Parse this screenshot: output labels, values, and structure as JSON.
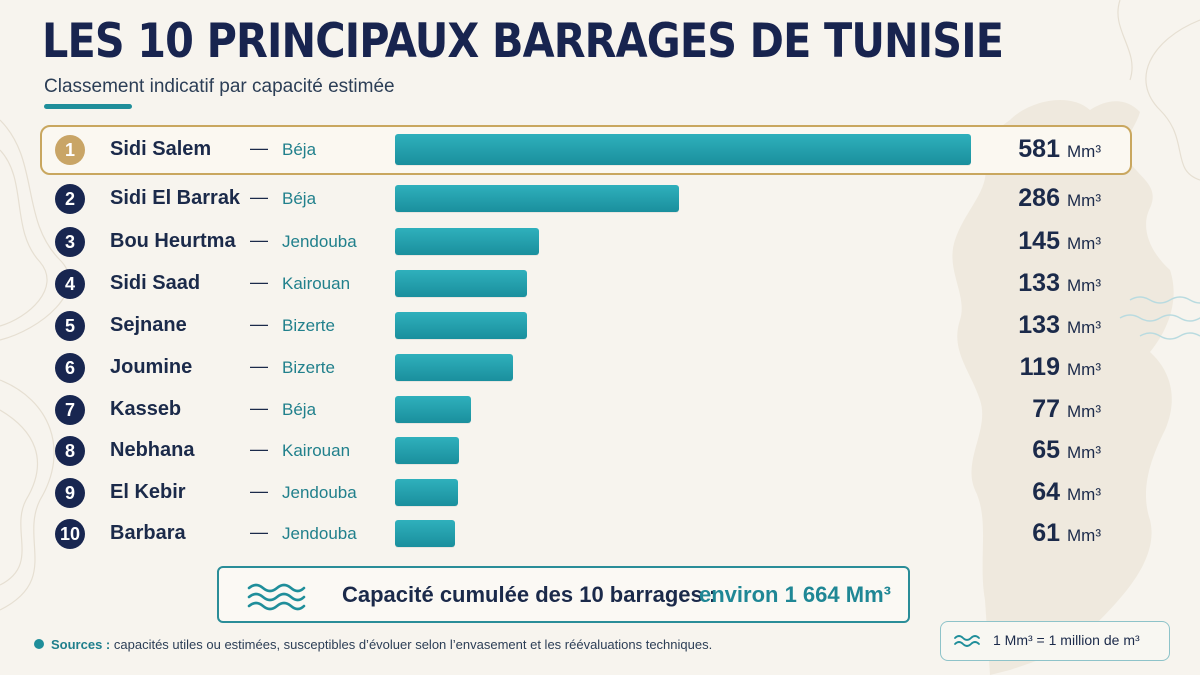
{
  "title": "LES 10 PRINCIPAUX BARRAGES DE TUNISIE",
  "subtitle": "Classement indicatif par capacité estimée",
  "colors": {
    "navy": "#182650",
    "teal_bar": "#1f98a6",
    "teal_text": "#21808c",
    "gold": "#c9a566",
    "background": "#f7f4ee"
  },
  "chart_data": {
    "type": "bar",
    "orientation": "horizontal",
    "title": "LES 10 PRINCIPAUX BARRAGES DE TUNISIE",
    "subtitle": "Classement indicatif par capacité estimée",
    "unit": "Mm³",
    "xlim": [
      0,
      581
    ],
    "categories": [
      "Sidi Salem",
      "Sidi El Barrak",
      "Bou Heurtma",
      "Sidi Saad",
      "Sejnane",
      "Joumine",
      "Kasseb",
      "Nebhana",
      "El Kebir",
      "Barbara"
    ],
    "regions": [
      "Béja",
      "Béja",
      "Jendouba",
      "Kairouan",
      "Bizerte",
      "Bizerte",
      "Béja",
      "Kairouan",
      "Jendouba",
      "Jendouba"
    ],
    "ranks": [
      "1",
      "2",
      "3",
      "4",
      "5",
      "6",
      "7",
      "8",
      "9",
      "10"
    ],
    "values": [
      581,
      286,
      145,
      133,
      133,
      119,
      77,
      65,
      64,
      61
    ],
    "highlighted": "Sidi Salem",
    "separator": "—"
  },
  "total": {
    "label": "Capacité cumulée des 10 barrages :",
    "value": "environ 1 664 Mm³",
    "icon": "water-waves-icon"
  },
  "sources": {
    "head": "Sources :",
    "text": "capacités utiles ou estimées, susceptibles d’évoluer selon l’envasement et les réévaluations techniques."
  },
  "legend": {
    "text": "1 Mm³ = 1 million de m³",
    "icon": "water-waves-icon"
  }
}
